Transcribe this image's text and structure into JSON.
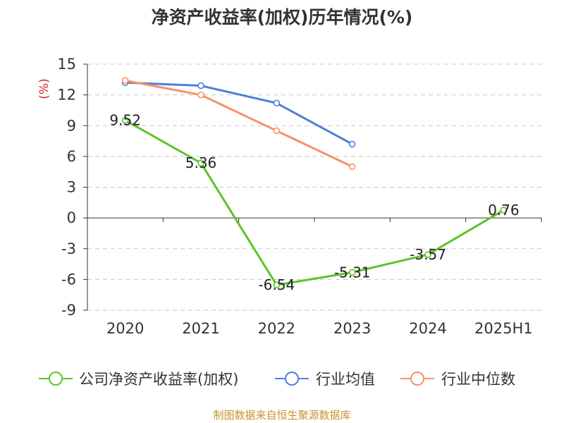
{
  "chart_data": {
    "type": "line",
    "title": "净资产收益率(加权)历年情况(%)",
    "ylabel": "(%)",
    "xlabel": "",
    "categories": [
      "2020",
      "2021",
      "2022",
      "2023",
      "2024",
      "2025H1"
    ],
    "ylim": [
      -9,
      15
    ],
    "yticks": [
      -9,
      -6,
      -3,
      0,
      3,
      6,
      9,
      12,
      15
    ],
    "grid": "horizontal-dashed",
    "legend_position": "bottom",
    "series": [
      {
        "name": "公司净资产收益率(加权)",
        "color": "#5cc42b",
        "values": [
          9.52,
          5.36,
          -6.54,
          -5.31,
          -3.57,
          0.76
        ],
        "labels": [
          "9.52",
          "5.36",
          "-6.54",
          "-5.31",
          "-3.57",
          "0.76"
        ]
      },
      {
        "name": "行业均值",
        "color": "#4d7fd8",
        "values": [
          13.2,
          12.9,
          11.2,
          7.2,
          null,
          null
        ]
      },
      {
        "name": "行业中位数",
        "color": "#f59266",
        "values": [
          13.4,
          12.0,
          8.5,
          5.0,
          null,
          null
        ]
      }
    ],
    "source": "制图数据来自恒生聚源数据库"
  }
}
